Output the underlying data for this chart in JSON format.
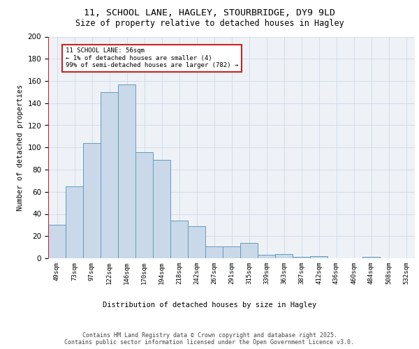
{
  "title_line1": "11, SCHOOL LANE, HAGLEY, STOURBRIDGE, DY9 9LD",
  "title_line2": "Size of property relative to detached houses in Hagley",
  "xlabel": "Distribution of detached houses by size in Hagley",
  "ylabel": "Number of detached properties",
  "bar_labels": [
    "49sqm",
    "73sqm",
    "97sqm",
    "122sqm",
    "146sqm",
    "170sqm",
    "194sqm",
    "218sqm",
    "242sqm",
    "267sqm",
    "291sqm",
    "315sqm",
    "339sqm",
    "363sqm",
    "387sqm",
    "412sqm",
    "436sqm",
    "460sqm",
    "484sqm",
    "508sqm",
    "532sqm"
  ],
  "bar_values": [
    30,
    65,
    104,
    150,
    157,
    96,
    89,
    34,
    29,
    11,
    11,
    14,
    3,
    4,
    1,
    2,
    0,
    0,
    1,
    0,
    0
  ],
  "bar_color": "#c9d9ea",
  "bar_edge_color": "#6699bb",
  "marker_color": "#cc2222",
  "annotation_box_text": "11 SCHOOL LANE: 56sqm\n← 1% of detached houses are smaller (4)\n99% of semi-detached houses are larger (782) →",
  "grid_color": "#d0d8e4",
  "background_color": "#eef2f7",
  "footer_text": "Contains HM Land Registry data © Crown copyright and database right 2025.\nContains public sector information licensed under the Open Government Licence v3.0.",
  "ylim": [
    0,
    200
  ],
  "yticks": [
    0,
    20,
    40,
    60,
    80,
    100,
    120,
    140,
    160,
    180,
    200
  ]
}
